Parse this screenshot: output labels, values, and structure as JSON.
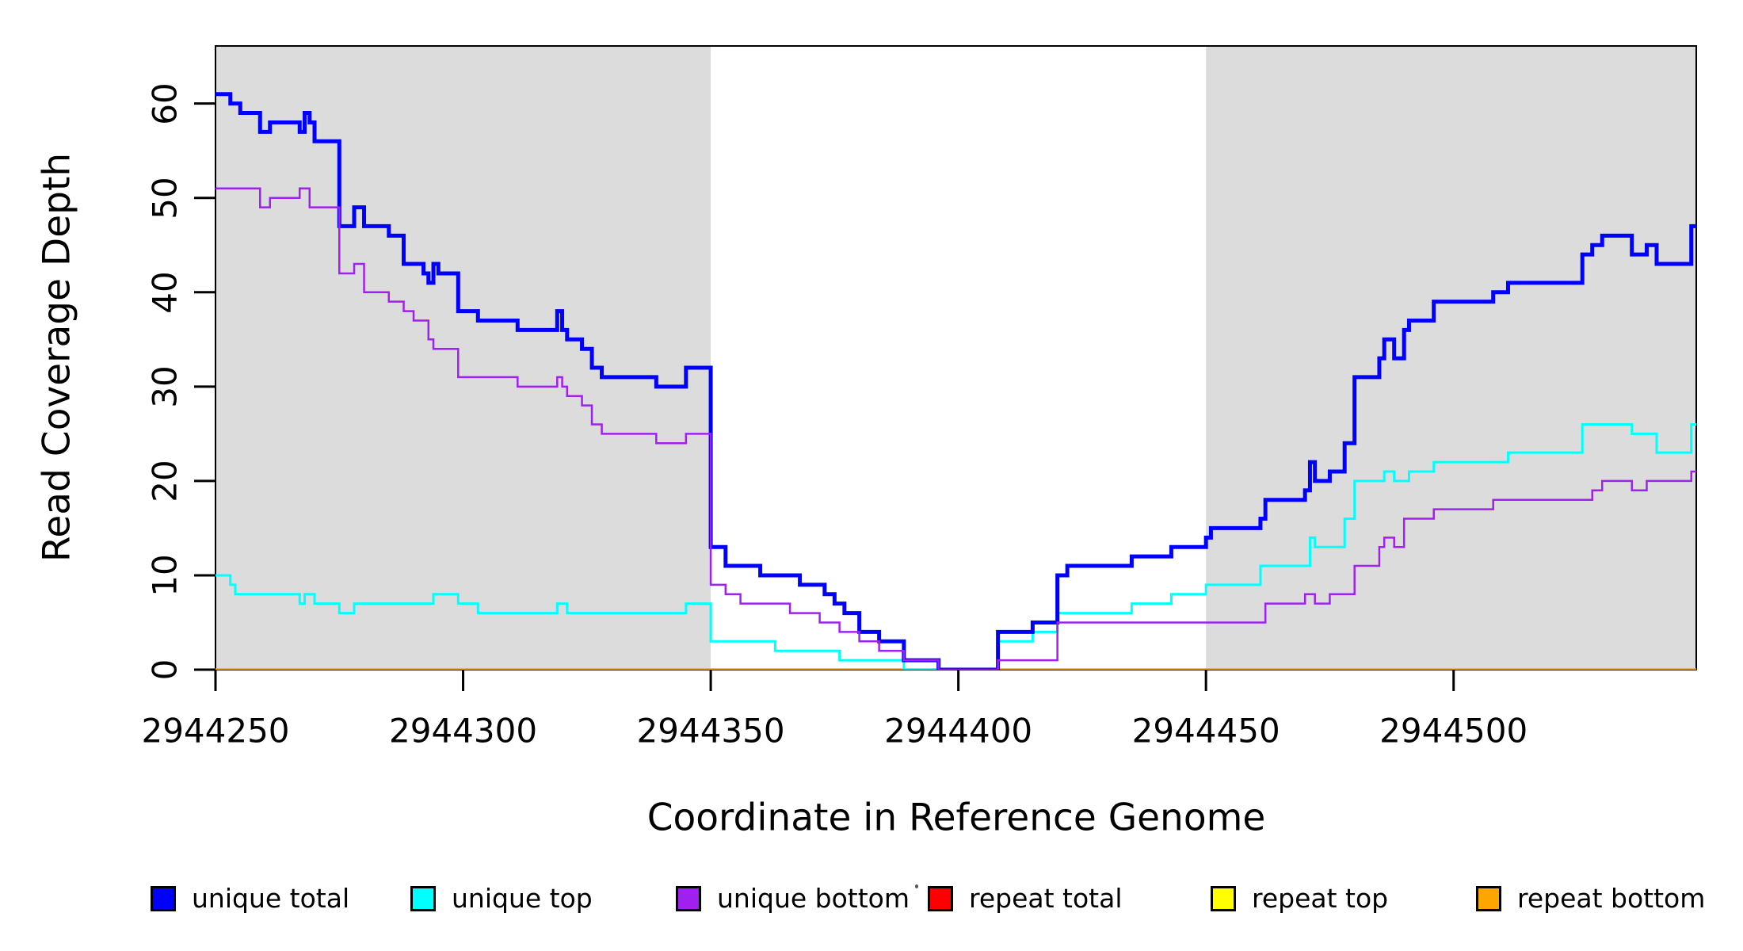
{
  "chart_data": {
    "type": "line",
    "subtype": "step",
    "title": "",
    "xlabel": "Coordinate in Reference Genome",
    "ylabel": "Read Coverage Depth",
    "xlim": [
      2944250,
      2944549
    ],
    "ylim": [
      0,
      66.1
    ],
    "x_ticks": [
      "2944250",
      "2944300",
      "2944350",
      "2944400",
      "2944450",
      "2944500"
    ],
    "x_tick_values": [
      2944250,
      2944300,
      2944350,
      2944400,
      2944450,
      2944500
    ],
    "y_ticks": [
      "0",
      "10",
      "20",
      "30",
      "40",
      "50",
      "60"
    ],
    "y_tick_values": [
      0,
      10,
      20,
      30,
      40,
      50,
      60
    ],
    "grid": false,
    "legend_position": "bottom",
    "background_color": "#FFFFFF",
    "shaded_region_color": "#DCDCDC",
    "axis_color": "#000000",
    "shaded_regions": [
      {
        "from": 2944250,
        "to": 2944350
      },
      {
        "from": 2944450,
        "to": 2944549
      }
    ],
    "series": [
      {
        "name": "repeat total",
        "color": "#FF0000",
        "width": 3,
        "points": [
          [
            2944250,
            0
          ]
        ]
      },
      {
        "name": "repeat top",
        "color": "#FFFF00",
        "width": 3,
        "points": [
          [
            2944250,
            0
          ]
        ]
      },
      {
        "name": "repeat bottom",
        "color": "#FFA500",
        "width": 3.5,
        "points": [
          [
            2944250,
            0
          ]
        ]
      },
      {
        "name": "unique top",
        "color": "#00FFFF",
        "width": 3,
        "points": [
          [
            2944250,
            10
          ],
          [
            2944253,
            9
          ],
          [
            2944254,
            8
          ],
          [
            2944267,
            7
          ],
          [
            2944268,
            8
          ],
          [
            2944270,
            7
          ],
          [
            2944275,
            6
          ],
          [
            2944278,
            7
          ],
          [
            2944294,
            8
          ],
          [
            2944299,
            7
          ],
          [
            2944303,
            6
          ],
          [
            2944319,
            7
          ],
          [
            2944321,
            6
          ],
          [
            2944345,
            7
          ],
          [
            2944350,
            3
          ],
          [
            2944363,
            2
          ],
          [
            2944376,
            1
          ],
          [
            2944389,
            0
          ],
          [
            2944408,
            3
          ],
          [
            2944415,
            4
          ],
          [
            2944420,
            6
          ],
          [
            2944435,
            7
          ],
          [
            2944443,
            8
          ],
          [
            2944450,
            9
          ],
          [
            2944461,
            11
          ],
          [
            2944471,
            14
          ],
          [
            2944472,
            13
          ],
          [
            2944478,
            16
          ],
          [
            2944480,
            20
          ],
          [
            2944486,
            21
          ],
          [
            2944488,
            20
          ],
          [
            2944491,
            21
          ],
          [
            2944496,
            22
          ],
          [
            2944511,
            23
          ],
          [
            2944526,
            26
          ],
          [
            2944536,
            25
          ],
          [
            2944541,
            23
          ],
          [
            2944548,
            26
          ]
        ]
      },
      {
        "name": "unique total",
        "color": "#0000FF",
        "width": 5,
        "points": [
          [
            2944250,
            61
          ],
          [
            2944253,
            60
          ],
          [
            2944255,
            59
          ],
          [
            2944259,
            57
          ],
          [
            2944261,
            58
          ],
          [
            2944267,
            57
          ],
          [
            2944268,
            59
          ],
          [
            2944269,
            58
          ],
          [
            2944270,
            56
          ],
          [
            2944275,
            47
          ],
          [
            2944278,
            49
          ],
          [
            2944280,
            47
          ],
          [
            2944285,
            46
          ],
          [
            2944288,
            43
          ],
          [
            2944292,
            42
          ],
          [
            2944293,
            41
          ],
          [
            2944294,
            43
          ],
          [
            2944295,
            42
          ],
          [
            2944299,
            38
          ],
          [
            2944303,
            37
          ],
          [
            2944311,
            36
          ],
          [
            2944319,
            38
          ],
          [
            2944320,
            36
          ],
          [
            2944321,
            35
          ],
          [
            2944324,
            34
          ],
          [
            2944326,
            32
          ],
          [
            2944328,
            31
          ],
          [
            2944339,
            30
          ],
          [
            2944345,
            32
          ],
          [
            2944350,
            13
          ],
          [
            2944353,
            11
          ],
          [
            2944360,
            10
          ],
          [
            2944368,
            9
          ],
          [
            2944373,
            8
          ],
          [
            2944375,
            7
          ],
          [
            2944377,
            6
          ],
          [
            2944380,
            4
          ],
          [
            2944384,
            3
          ],
          [
            2944389,
            1
          ],
          [
            2944396,
            0
          ],
          [
            2944408,
            4
          ],
          [
            2944415,
            5
          ],
          [
            2944420,
            10
          ],
          [
            2944422,
            11
          ],
          [
            2944435,
            12
          ],
          [
            2944443,
            13
          ],
          [
            2944450,
            14
          ],
          [
            2944451,
            15
          ],
          [
            2944461,
            16
          ],
          [
            2944462,
            18
          ],
          [
            2944470,
            19
          ],
          [
            2944471,
            22
          ],
          [
            2944472,
            20
          ],
          [
            2944475,
            21
          ],
          [
            2944478,
            24
          ],
          [
            2944480,
            31
          ],
          [
            2944485,
            33
          ],
          [
            2944486,
            35
          ],
          [
            2944488,
            33
          ],
          [
            2944490,
            36
          ],
          [
            2944491,
            37
          ],
          [
            2944496,
            39
          ],
          [
            2944508,
            40
          ],
          [
            2944511,
            41
          ],
          [
            2944526,
            44
          ],
          [
            2944528,
            45
          ],
          [
            2944530,
            46
          ],
          [
            2944536,
            44
          ],
          [
            2944539,
            45
          ],
          [
            2944541,
            43
          ],
          [
            2944548,
            47
          ]
        ]
      },
      {
        "name": "unique bottom",
        "color": "#A020F0",
        "width": 2.5,
        "points": [
          [
            2944250,
            51
          ],
          [
            2944259,
            49
          ],
          [
            2944261,
            50
          ],
          [
            2944267,
            51
          ],
          [
            2944269,
            49
          ],
          [
            2944275,
            42
          ],
          [
            2944278,
            43
          ],
          [
            2944280,
            40
          ],
          [
            2944285,
            39
          ],
          [
            2944288,
            38
          ],
          [
            2944290,
            37
          ],
          [
            2944293,
            35
          ],
          [
            2944294,
            34
          ],
          [
            2944299,
            31
          ],
          [
            2944311,
            30
          ],
          [
            2944319,
            31
          ],
          [
            2944320,
            30
          ],
          [
            2944321,
            29
          ],
          [
            2944324,
            28
          ],
          [
            2944326,
            26
          ],
          [
            2944328,
            25
          ],
          [
            2944339,
            24
          ],
          [
            2944345,
            25
          ],
          [
            2944350,
            9
          ],
          [
            2944353,
            8
          ],
          [
            2944356,
            7
          ],
          [
            2944366,
            6
          ],
          [
            2944372,
            5
          ],
          [
            2944376,
            4
          ],
          [
            2944380,
            3
          ],
          [
            2944384,
            2
          ],
          [
            2944389,
            1
          ],
          [
            2944396,
            0
          ],
          [
            2944408,
            1
          ],
          [
            2944420,
            5
          ],
          [
            2944462,
            7
          ],
          [
            2944470,
            8
          ],
          [
            2944472,
            7
          ],
          [
            2944475,
            8
          ],
          [
            2944480,
            11
          ],
          [
            2944485,
            13
          ],
          [
            2944486,
            14
          ],
          [
            2944488,
            13
          ],
          [
            2944490,
            16
          ],
          [
            2944496,
            17
          ],
          [
            2944508,
            18
          ],
          [
            2944528,
            19
          ],
          [
            2944530,
            20
          ],
          [
            2944536,
            19
          ],
          [
            2944539,
            20
          ],
          [
            2944548,
            21
          ]
        ]
      }
    ],
    "legend": [
      {
        "label": "unique total",
        "color": "#0000FF"
      },
      {
        "label": "unique top",
        "color": "#00FFFF"
      },
      {
        "label": "unique bottom",
        "color": "#A020F0"
      },
      {
        "label": "repeat total",
        "color": "#FF0000"
      },
      {
        "label": "repeat top",
        "color": "#FFFF00"
      },
      {
        "label": "repeat bottom",
        "color": "#FFA500"
      }
    ]
  }
}
